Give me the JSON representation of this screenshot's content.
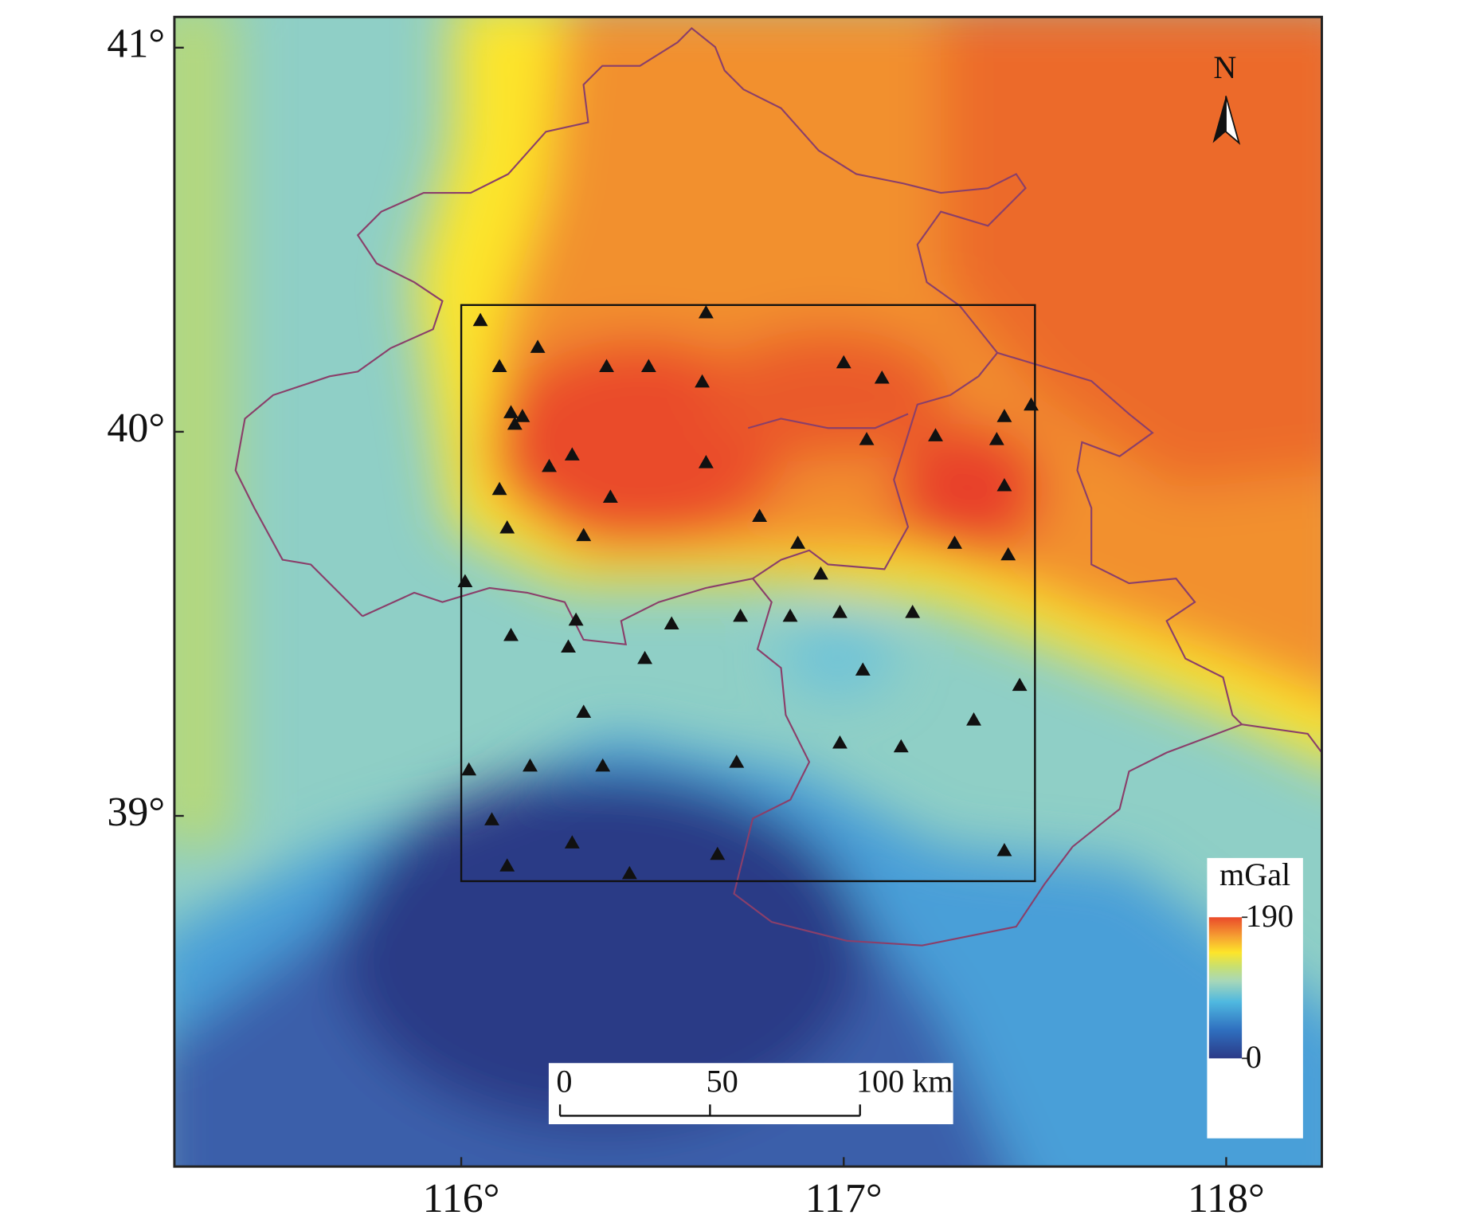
{
  "map": {
    "xlim": [
      115.25,
      118.25
    ],
    "ylim": [
      38.087,
      41.08
    ],
    "xticks": [
      {
        "value": 116,
        "label": "116°"
      },
      {
        "value": 117,
        "label": "117°"
      },
      {
        "value": 118,
        "label": "118°"
      }
    ],
    "yticks": [
      {
        "value": 39,
        "label": "39°"
      },
      {
        "value": 40,
        "label": "40°"
      },
      {
        "value": 41,
        "label": "41°"
      }
    ],
    "study_area": {
      "lon": [
        116.0,
        117.5
      ],
      "lat": [
        38.83,
        40.33
      ]
    },
    "stations": {
      "lon": [
        116.05,
        116.1,
        116.2,
        116.38,
        116.49,
        116.64,
        116.63,
        117.0,
        117.1,
        116.13,
        116.14,
        116.16,
        116.23,
        116.29,
        117.06,
        117.24,
        117.4,
        117.42,
        117.49,
        116.1,
        116.39,
        116.64,
        116.78,
        116.12,
        116.32,
        116.88,
        117.29,
        117.43,
        117.42,
        116.01,
        116.94,
        116.3,
        116.13,
        116.28,
        116.55,
        116.73,
        116.86,
        116.99,
        117.18,
        116.48,
        117.05,
        117.46,
        116.32,
        117.34,
        116.99,
        117.15,
        116.02,
        116.18,
        116.37,
        116.72,
        116.08,
        116.29,
        116.12,
        116.44,
        116.67,
        117.42
      ],
      "lat": [
        40.29,
        40.17,
        40.22,
        40.17,
        40.17,
        40.31,
        40.13,
        40.18,
        40.14,
        40.05,
        40.02,
        40.04,
        39.91,
        39.94,
        39.98,
        39.99,
        39.98,
        40.04,
        40.07,
        39.85,
        39.83,
        39.92,
        39.78,
        39.75,
        39.73,
        39.71,
        39.71,
        39.68,
        39.86,
        39.61,
        39.63,
        39.51,
        39.47,
        39.44,
        39.5,
        39.52,
        39.52,
        39.53,
        39.53,
        39.41,
        39.38,
        39.34,
        39.27,
        39.25,
        39.19,
        39.18,
        39.12,
        39.13,
        39.13,
        39.14,
        38.99,
        38.93,
        38.87,
        38.85,
        38.9,
        38.91
      ]
    },
    "north_label": "N",
    "colorbar": {
      "label": "mGal",
      "lim": [
        0,
        190
      ],
      "ticks": [
        0,
        190
      ]
    },
    "scale_bar": {
      "lim": [
        0,
        100
      ],
      "ticks": [
        0,
        50,
        {
          "value": 100,
          "label": "100 km"
        }
      ]
    }
  }
}
